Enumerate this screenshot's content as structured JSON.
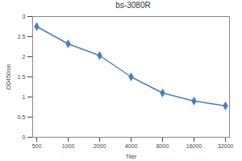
{
  "chart_data": {
    "type": "line",
    "title": "bs-3080R",
    "x_label": "Titer",
    "y_label": "OD450nm",
    "categories": [
      "500",
      "1000",
      "2000",
      "4000",
      "8000",
      "16000",
      "32000"
    ],
    "values": [
      2.75,
      2.32,
      2.03,
      1.5,
      1.1,
      0.9,
      0.78
    ],
    "color": "#4a7ebb",
    "marker": "diamond",
    "ylim": [
      0,
      3
    ],
    "yticks": [
      0,
      0.5,
      1,
      1.5,
      2,
      2.5,
      3
    ],
    "grid": false
  }
}
